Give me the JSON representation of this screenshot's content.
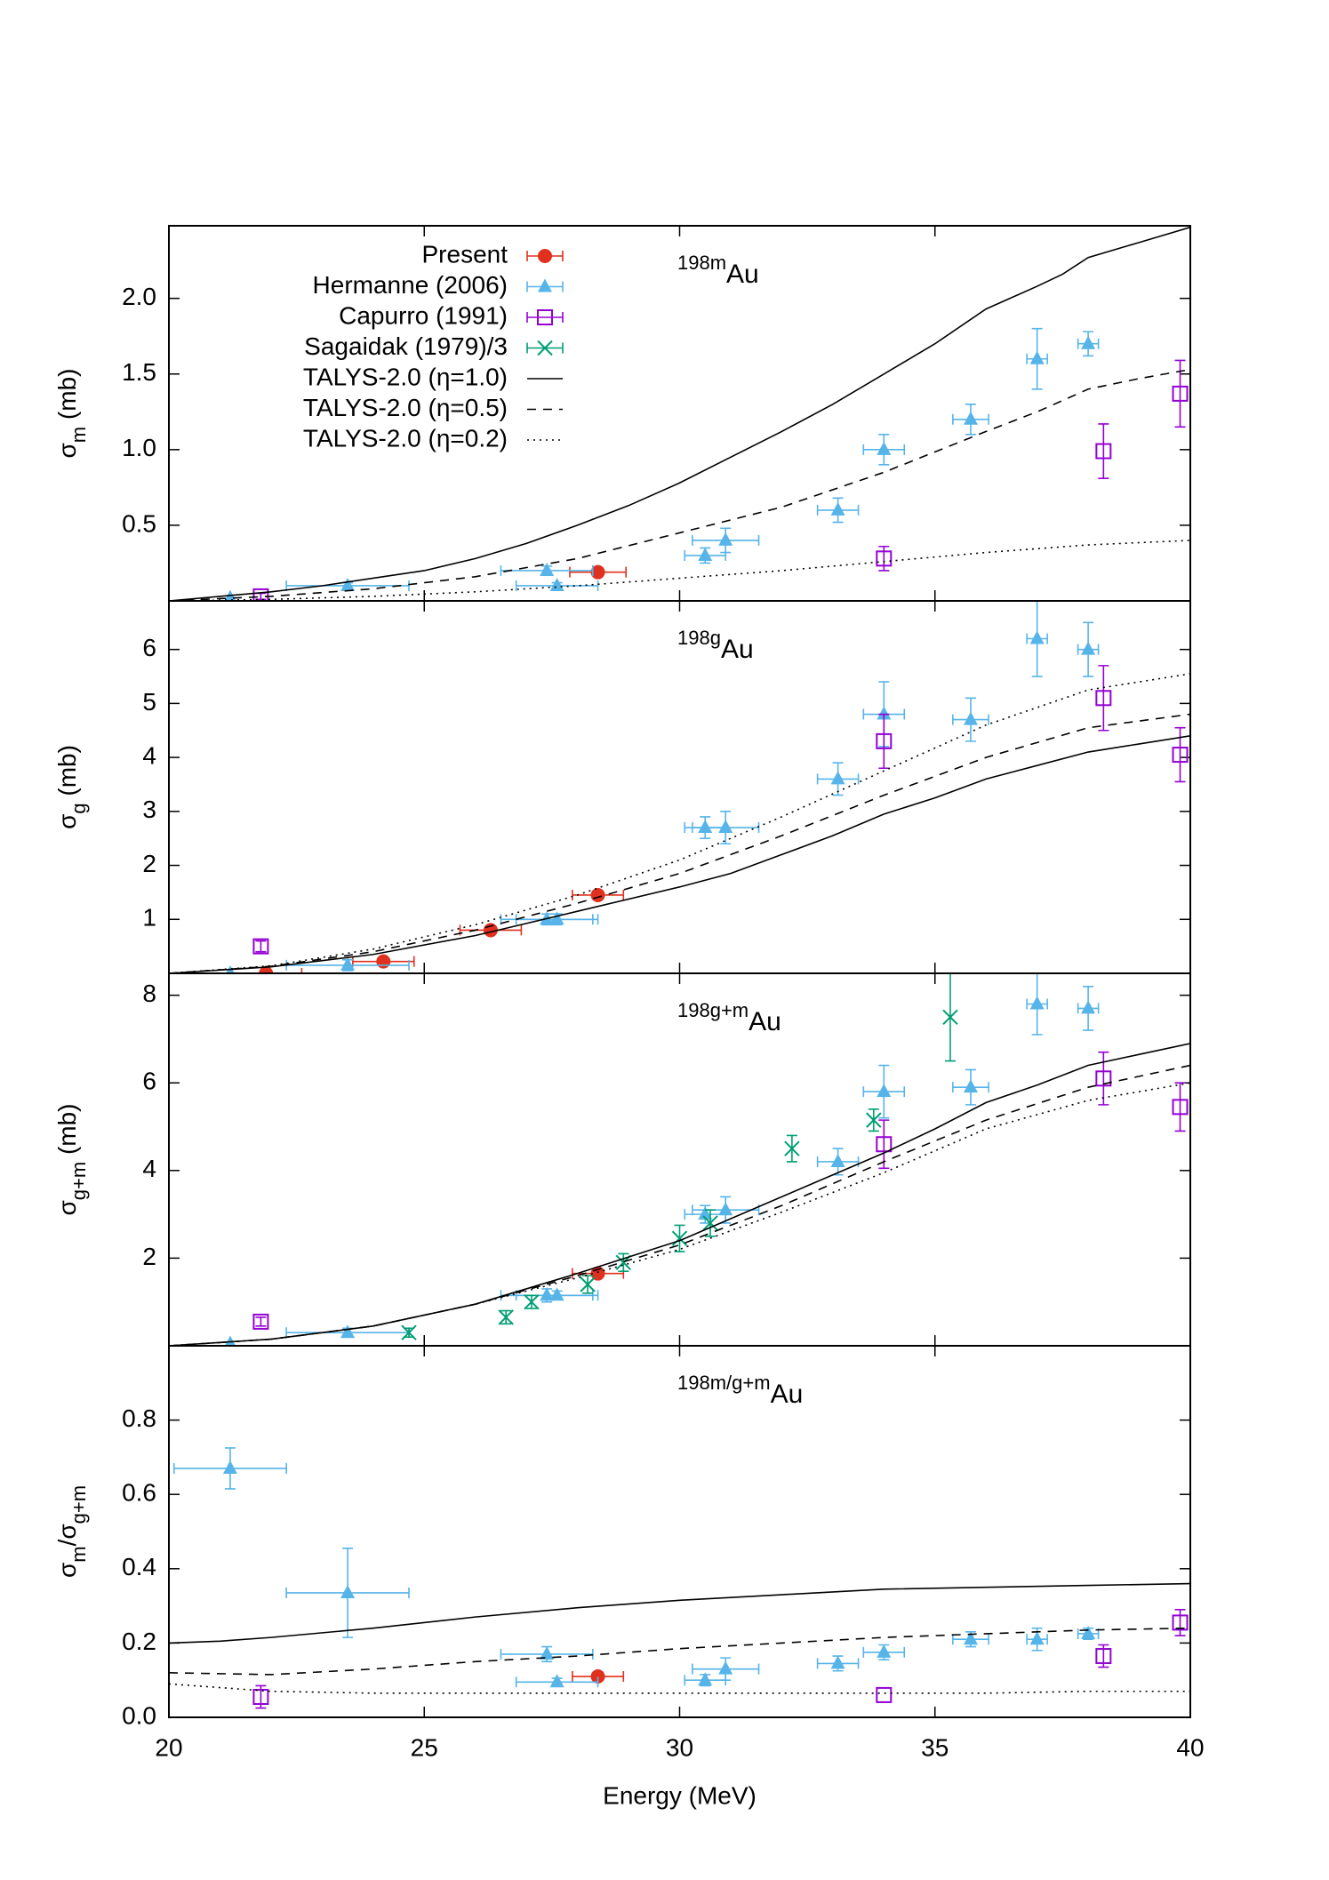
{
  "chart_data": [
    {
      "type": "scatter",
      "annotation_sup": "198m",
      "annotation": "Au",
      "ylabel": [
        {
          "text": "σ"
        },
        {
          "text": "m",
          "baseline": "sub"
        },
        {
          "text": " (mb)"
        }
      ],
      "xlim": [
        20,
        40
      ],
      "xticks": [
        20,
        25,
        30,
        35,
        40
      ],
      "show_xtick_labels": false,
      "ylim": [
        0,
        2.48
      ],
      "yticks": [
        0.5,
        {
          "value": 1,
          "label": "1.0"
        },
        1.5,
        {
          "value": 2,
          "label": "2.0"
        }
      ],
      "legend": "top-left",
      "series": [
        {
          "name": "Present",
          "color": "#e0301e",
          "marker": "circle",
          "x": [
            28.4
          ],
          "values": [
            0.19
          ],
          "xerr": [
            0.55
          ],
          "yerr": [
            null
          ]
        },
        {
          "name": "Hermanne (2006)",
          "color": "#56b4e9",
          "marker": "triangle",
          "x": [
            21.2,
            23.5,
            27.4,
            27.6,
            30.5,
            30.9,
            33.1,
            34.0,
            35.7,
            37.0,
            38.0
          ],
          "values": [
            0.02,
            0.1,
            0.2,
            0.1,
            0.3,
            0.4,
            0.6,
            1.0,
            1.2,
            1.6,
            1.7
          ],
          "xerr": [
            null,
            1.2,
            0.9,
            0.8,
            0.4,
            0.65,
            0.4,
            0.4,
            0.35,
            0.2,
            0.2
          ],
          "yerr": [
            null,
            0.02,
            0.03,
            0.02,
            0.05,
            0.08,
            0.08,
            0.1,
            0.1,
            0.2,
            0.08
          ]
        },
        {
          "name": "Capurro (1991)",
          "color": "#9400d3",
          "marker": "square",
          "x": [
            21.8,
            34.0,
            38.3,
            39.8
          ],
          "values": [
            0.03,
            0.28,
            0.99,
            1.37
          ],
          "xerr": [
            null,
            null,
            null,
            null
          ],
          "yerr": [
            0.02,
            0.08,
            0.18,
            0.22
          ]
        },
        {
          "name": "Sagaidak (1979)/3",
          "color": "#009e73",
          "marker": "x",
          "x": [],
          "values": [],
          "xerr": [],
          "yerr": []
        },
        {
          "name": "TALYS-2.0 (η=1.0)",
          "color": "#000000",
          "line": "solid",
          "x": [
            20,
            21,
            22,
            23,
            24,
            25,
            26,
            27,
            28,
            29,
            30,
            31,
            32,
            33,
            34,
            35,
            36,
            37,
            37.5,
            38,
            39,
            40
          ],
          "values": [
            0,
            0.03,
            0.06,
            0.1,
            0.15,
            0.2,
            0.28,
            0.38,
            0.5,
            0.63,
            0.78,
            0.95,
            1.12,
            1.3,
            1.5,
            1.7,
            1.93,
            2.08,
            2.16,
            2.27,
            2.37,
            2.47
          ]
        },
        {
          "name": "TALYS-2.0 (η=0.5)",
          "color": "#000000",
          "line": "dashed",
          "x": [
            20,
            22,
            24,
            26,
            28,
            30,
            32,
            34,
            36,
            37,
            38,
            39,
            40
          ],
          "values": [
            0,
            0.03,
            0.08,
            0.16,
            0.28,
            0.45,
            0.62,
            0.85,
            1.12,
            1.25,
            1.4,
            1.47,
            1.53
          ]
        },
        {
          "name": "TALYS-2.0 (η=0.2)",
          "color": "#000000",
          "line": "dotted",
          "x": [
            20,
            22,
            24,
            26,
            28,
            30,
            32,
            34,
            36,
            38,
            40
          ],
          "values": [
            0,
            0.01,
            0.03,
            0.06,
            0.1,
            0.15,
            0.2,
            0.26,
            0.32,
            0.37,
            0.4
          ]
        }
      ]
    },
    {
      "type": "scatter",
      "annotation_sup": "198g",
      "annotation": "Au",
      "ylabel": [
        {
          "text": "σ"
        },
        {
          "text": "g",
          "baseline": "sub"
        },
        {
          "text": " (mb)"
        }
      ],
      "xlim": [
        20,
        40
      ],
      "xticks": [
        20,
        25,
        30,
        35,
        40
      ],
      "show_xtick_labels": false,
      "ylim": [
        0,
        6.9
      ],
      "yticks": [
        1,
        2,
        3,
        4,
        5,
        6
      ],
      "series": [
        {
          "color": "#e0301e",
          "marker": "circle",
          "x": [
            21.9,
            24.2,
            26.3,
            28.4
          ],
          "values": [
            0.0,
            0.22,
            0.8,
            1.45
          ],
          "xerr": [
            0.7,
            0.6,
            0.6,
            0.5
          ],
          "yerr": [
            null,
            null,
            null,
            null
          ]
        },
        {
          "color": "#56b4e9",
          "marker": "triangle",
          "x": [
            21.2,
            23.5,
            27.4,
            27.6,
            30.5,
            30.9,
            33.1,
            34.0,
            35.7,
            37.0,
            38.0
          ],
          "values": [
            0.0,
            0.15,
            1.0,
            1.0,
            2.7,
            2.7,
            3.6,
            4.8,
            4.7,
            6.2,
            6.0
          ],
          "xerr": [
            null,
            1.2,
            0.9,
            0.8,
            0.4,
            0.65,
            0.4,
            0.4,
            0.35,
            0.2,
            0.2
          ],
          "yerr": [
            null,
            0.1,
            0.1,
            0.1,
            0.2,
            0.3,
            0.3,
            0.6,
            0.4,
            0.7,
            0.5
          ]
        },
        {
          "color": "#9400d3",
          "marker": "square",
          "x": [
            21.8,
            34.0,
            38.3,
            39.8
          ],
          "values": [
            0.5,
            4.3,
            5.1,
            4.05
          ],
          "xerr": [
            null,
            null,
            null,
            null
          ],
          "yerr": [
            0.1,
            0.5,
            0.6,
            0.5
          ]
        },
        {
          "color": "#000000",
          "line": "solid",
          "x": [
            20,
            22,
            24,
            26,
            28,
            30,
            31,
            32,
            33,
            34,
            35,
            36,
            37,
            38,
            39,
            40
          ],
          "values": [
            0,
            0.12,
            0.35,
            0.7,
            1.15,
            1.6,
            1.85,
            2.2,
            2.55,
            2.95,
            3.25,
            3.6,
            3.85,
            4.1,
            4.25,
            4.4
          ]
        },
        {
          "color": "#000000",
          "line": "dashed",
          "x": [
            20,
            22,
            24,
            26,
            28,
            30,
            32,
            34,
            36,
            38,
            40
          ],
          "values": [
            0,
            0.13,
            0.4,
            0.8,
            1.3,
            1.85,
            2.55,
            3.3,
            4.0,
            4.55,
            4.8
          ]
        },
        {
          "color": "#000000",
          "line": "dotted",
          "x": [
            20,
            22,
            24,
            26,
            28,
            30,
            32,
            34,
            36,
            38,
            40
          ],
          "values": [
            0,
            0.14,
            0.45,
            0.9,
            1.45,
            2.1,
            2.9,
            3.75,
            4.6,
            5.25,
            5.55
          ]
        }
      ]
    },
    {
      "type": "scatter",
      "annotation_sup": "198g+m",
      "annotation": "Au",
      "ylabel": [
        {
          "text": "σ"
        },
        {
          "text": "g+m",
          "baseline": "sub"
        },
        {
          "text": " (mb)"
        }
      ],
      "xlim": [
        20,
        40
      ],
      "xticks": [
        20,
        25,
        30,
        35,
        40
      ],
      "show_xtick_labels": false,
      "ylim": [
        0,
        8.5
      ],
      "yticks": [
        2,
        4,
        6,
        8
      ],
      "series": [
        {
          "color": "#e0301e",
          "marker": "circle",
          "x": [
            28.4
          ],
          "values": [
            1.65
          ],
          "xerr": [
            0.5
          ],
          "yerr": [
            null
          ]
        },
        {
          "color": "#56b4e9",
          "marker": "triangle",
          "x": [
            21.2,
            23.5,
            27.4,
            27.6,
            30.5,
            30.9,
            33.1,
            34.0,
            35.7,
            37.0,
            38.0
          ],
          "values": [
            0.05,
            0.3,
            1.15,
            1.15,
            3.0,
            3.1,
            4.2,
            5.8,
            5.9,
            7.8,
            7.7
          ],
          "xerr": [
            null,
            1.2,
            0.9,
            0.8,
            0.4,
            0.65,
            0.4,
            0.4,
            0.35,
            0.2,
            0.2
          ],
          "yerr": [
            null,
            0.1,
            0.15,
            0.1,
            0.2,
            0.3,
            0.3,
            0.6,
            0.4,
            0.7,
            0.5
          ]
        },
        {
          "color": "#9400d3",
          "marker": "square",
          "x": [
            21.8,
            34.0,
            38.3,
            39.8
          ],
          "values": [
            0.55,
            4.6,
            6.1,
            5.45
          ],
          "xerr": [
            null,
            null,
            null,
            null
          ],
          "yerr": [
            0.1,
            0.55,
            0.6,
            0.55
          ]
        },
        {
          "color": "#009e73",
          "marker": "x",
          "x": [
            24.7,
            26.6,
            27.1,
            28.2,
            28.9,
            30.0,
            30.6,
            32.2,
            33.8,
            35.3
          ],
          "values": [
            0.3,
            0.65,
            1.0,
            1.4,
            1.9,
            2.45,
            2.8,
            4.5,
            5.15,
            7.5
          ],
          "xerr": [
            null,
            null,
            null,
            null,
            null,
            null,
            null,
            null,
            null,
            null
          ],
          "yerr": [
            0.1,
            0.15,
            0.15,
            0.2,
            0.2,
            0.3,
            0.3,
            0.3,
            0.25,
            1.0
          ]
        },
        {
          "color": "#000000",
          "line": "solid",
          "x": [
            20,
            22,
            24,
            26,
            28,
            30,
            32,
            34,
            35,
            36,
            37,
            38,
            39,
            40
          ],
          "values": [
            0,
            0.15,
            0.45,
            0.95,
            1.65,
            2.4,
            3.4,
            4.4,
            4.95,
            5.55,
            5.95,
            6.4,
            6.65,
            6.9
          ]
        },
        {
          "color": "#000000",
          "line": "dashed",
          "x": [
            20,
            22,
            24,
            26,
            28,
            30,
            32,
            34,
            36,
            38,
            40
          ],
          "values": [
            0,
            0.15,
            0.45,
            0.95,
            1.6,
            2.3,
            3.2,
            4.2,
            5.15,
            5.9,
            6.4
          ]
        },
        {
          "color": "#000000",
          "line": "dotted",
          "x": [
            20,
            22,
            24,
            26,
            28,
            30,
            32,
            34,
            36,
            38,
            40
          ],
          "values": [
            0,
            0.15,
            0.45,
            0.95,
            1.55,
            2.2,
            3.05,
            3.95,
            4.95,
            5.6,
            6.0
          ]
        }
      ]
    },
    {
      "type": "scatter",
      "annotation_sup": "198m/g+m",
      "annotation": "Au",
      "ylabel": [
        {
          "text": "σ"
        },
        {
          "text": "m",
          "baseline": "sub"
        },
        {
          "text": "/σ"
        },
        {
          "text": "g+m",
          "baseline": "sub"
        }
      ],
      "xlabel": "Energy (MeV)",
      "xlim": [
        20,
        40
      ],
      "xticks": [
        20,
        25,
        30,
        35,
        40
      ],
      "show_xtick_labels": true,
      "ylim": [
        0,
        1.0
      ],
      "yticks": [
        {
          "value": 0,
          "label": "0.0"
        },
        0.2,
        0.4,
        0.6,
        0.8
      ],
      "series": [
        {
          "color": "#e0301e",
          "marker": "circle",
          "x": [
            28.4
          ],
          "values": [
            0.11
          ],
          "xerr": [
            0.5
          ],
          "yerr": [
            null
          ]
        },
        {
          "color": "#56b4e9",
          "marker": "triangle",
          "x": [
            21.2,
            23.5,
            27.4,
            27.6,
            30.5,
            30.9,
            33.1,
            34.0,
            35.7,
            37.0,
            38.0
          ],
          "values": [
            0.67,
            0.335,
            0.17,
            0.095,
            0.1,
            0.13,
            0.145,
            0.175,
            0.21,
            0.21,
            0.225
          ],
          "xerr": [
            1.1,
            1.2,
            0.9,
            0.8,
            0.4,
            0.65,
            0.4,
            0.4,
            0.35,
            0.2,
            0.2
          ],
          "yerr": [
            0.055,
            0.12,
            0.02,
            0.01,
            0.015,
            0.03,
            0.02,
            0.02,
            0.02,
            0.03,
            0.015
          ]
        },
        {
          "color": "#9400d3",
          "marker": "square",
          "x": [
            21.8,
            34.0,
            38.3,
            39.8
          ],
          "values": [
            0.055,
            0.06,
            0.165,
            0.255
          ],
          "xerr": [
            null,
            null,
            null,
            null
          ],
          "yerr": [
            0.03,
            null,
            0.03,
            0.035
          ]
        },
        {
          "color": "#000000",
          "line": "solid",
          "x": [
            20,
            21,
            22,
            24,
            26,
            28,
            30,
            32,
            34,
            36,
            38,
            40
          ],
          "values": [
            0.2,
            0.205,
            0.215,
            0.24,
            0.27,
            0.295,
            0.315,
            0.33,
            0.345,
            0.35,
            0.355,
            0.36
          ]
        },
        {
          "color": "#000000",
          "line": "dashed",
          "x": [
            20,
            22,
            24,
            26,
            28,
            30,
            32,
            34,
            36,
            38,
            40
          ],
          "values": [
            0.12,
            0.115,
            0.13,
            0.15,
            0.165,
            0.185,
            0.2,
            0.215,
            0.225,
            0.235,
            0.24
          ]
        },
        {
          "color": "#000000",
          "line": "dotted",
          "x": [
            20,
            22,
            24,
            26,
            28,
            30,
            32,
            34,
            36,
            38,
            40
          ],
          "values": [
            0.09,
            0.07,
            0.065,
            0.065,
            0.065,
            0.065,
            0.065,
            0.065,
            0.065,
            0.07,
            0.07
          ]
        }
      ]
    }
  ]
}
